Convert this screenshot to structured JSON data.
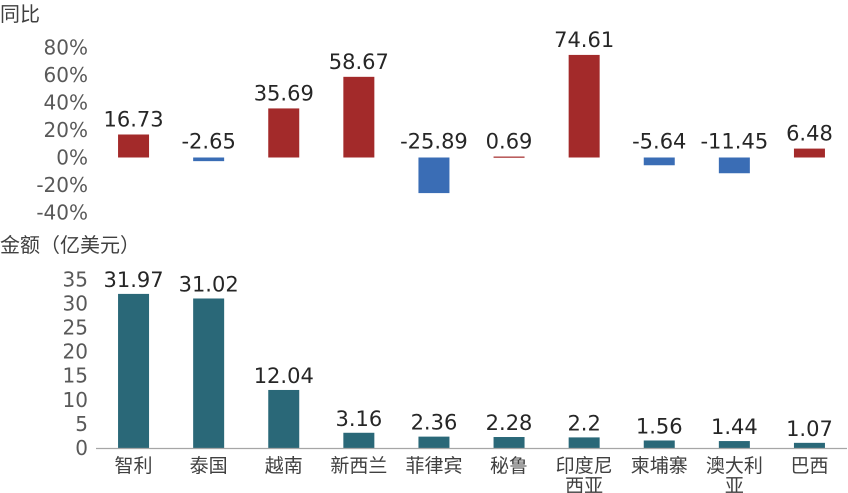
{
  "chart_data": [
    {
      "type": "bar",
      "title": "同比",
      "categories": [
        "智利",
        "泰国",
        "越南",
        "新西兰",
        "菲律宾",
        "秘鲁",
        "印度尼西亚",
        "柬埔寨",
        "澳大利亚",
        "巴西"
      ],
      "values": [
        16.73,
        -2.65,
        35.69,
        58.67,
        -25.89,
        0.69,
        74.61,
        -5.64,
        -11.45,
        6.48
      ],
      "data_labels": [
        "16.73",
        "-2.65",
        "35.69",
        "58.67",
        "-25.89",
        "0.69",
        "74.61",
        "-5.64",
        "-11.45",
        "6.48"
      ],
      "y_ticks": [
        "80%",
        "60%",
        "40%",
        "20%",
        "0%",
        "-20%",
        "-40%"
      ],
      "y_tick_values": [
        80,
        60,
        40,
        20,
        0,
        -20,
        -40
      ],
      "ylim": [
        -40,
        80
      ],
      "grid": false,
      "colors": {
        "positive": "#A32A2A",
        "negative": "#3A6DB5"
      }
    },
    {
      "type": "bar",
      "title": "金额（亿美元）",
      "categories": [
        "智利",
        "泰国",
        "越南",
        "新西兰",
        "菲律宾",
        "秘鲁",
        "印度尼西亚",
        "柬埔寨",
        "澳大利亚",
        "巴西"
      ],
      "category_labels": [
        [
          "智利"
        ],
        [
          "泰国"
        ],
        [
          "越南"
        ],
        [
          "新西兰"
        ],
        [
          "菲律宾"
        ],
        [
          "秘鲁"
        ],
        [
          "印度尼",
          "西亚"
        ],
        [
          "柬埔寨"
        ],
        [
          "澳大利",
          "亚"
        ],
        [
          "巴西"
        ]
      ],
      "values": [
        31.97,
        31.02,
        12.04,
        3.16,
        2.36,
        2.28,
        2.2,
        1.56,
        1.44,
        1.07
      ],
      "data_labels": [
        "31.97",
        "31.02",
        "12.04",
        "3.16",
        "2.36",
        "2.28",
        "2.2",
        "1.56",
        "1.44",
        "1.07"
      ],
      "y_ticks": [
        "35",
        "30",
        "25",
        "20",
        "15",
        "10",
        "5",
        "0"
      ],
      "y_tick_values": [
        35,
        30,
        25,
        20,
        15,
        10,
        5,
        0
      ],
      "ylim": [
        0,
        35
      ],
      "grid": false,
      "colors": {
        "bar": "#2A6878",
        "axis": "#A6A6A6"
      }
    }
  ]
}
